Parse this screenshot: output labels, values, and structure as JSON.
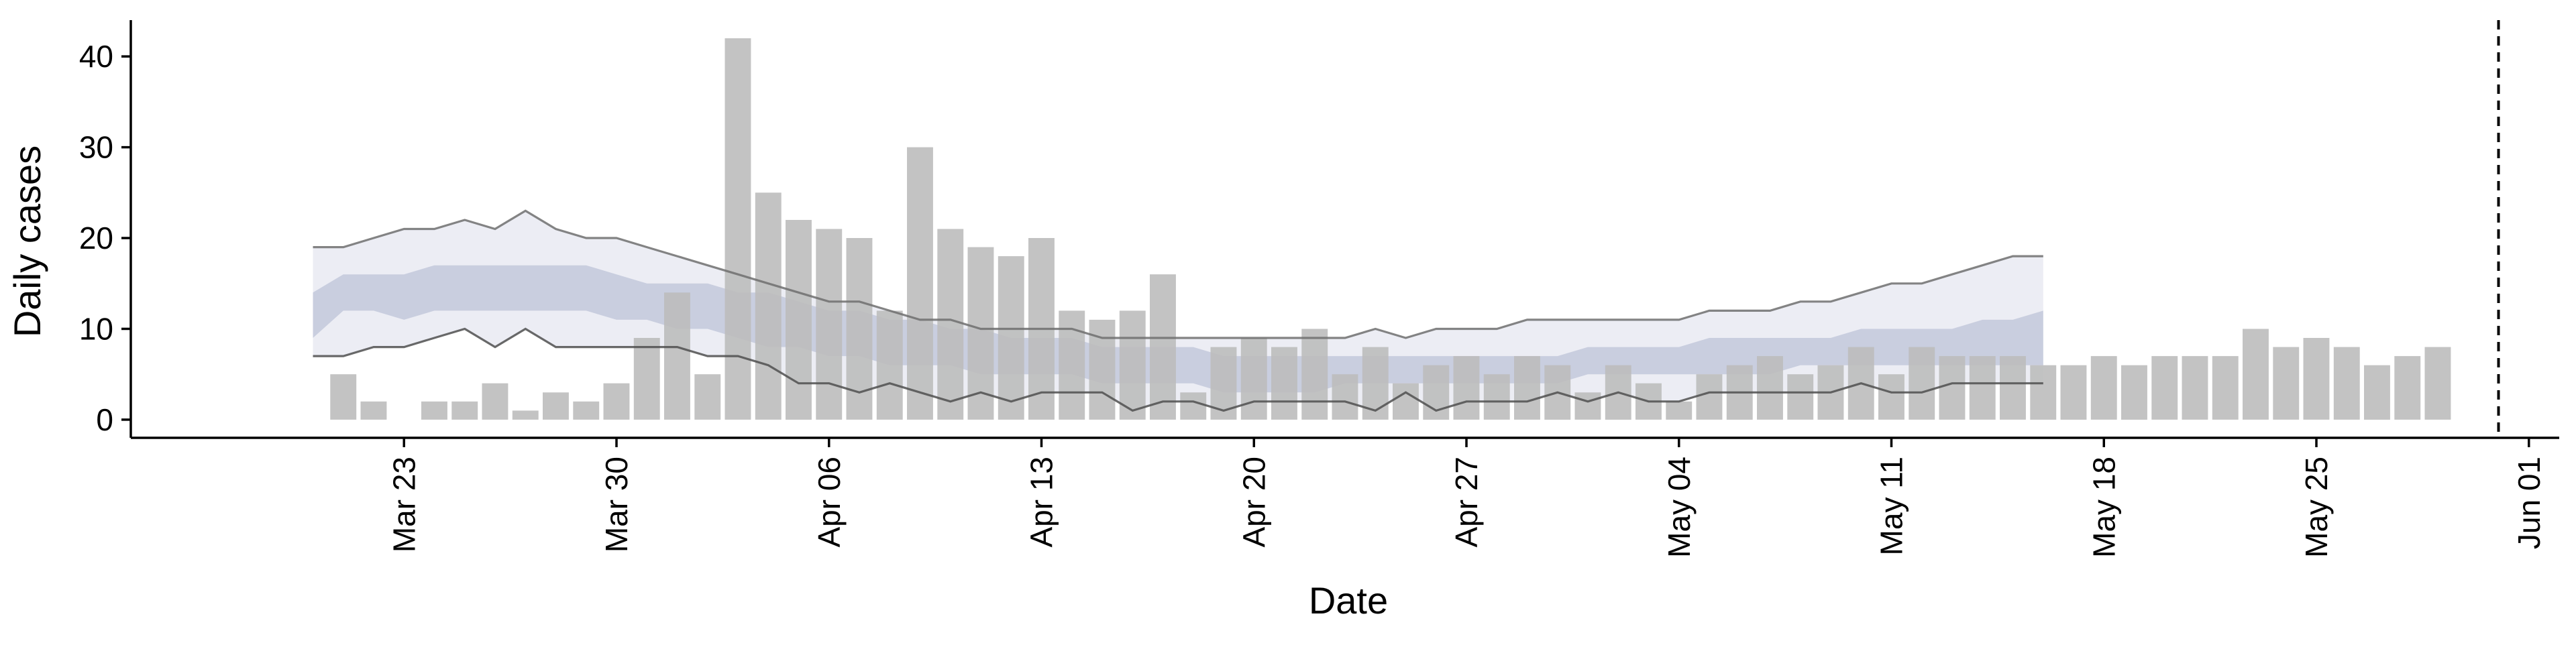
{
  "chart_data": {
    "type": "bar",
    "xlabel": "Date",
    "ylabel": "Daily cases",
    "xlim": [
      "2020-03-14",
      "2020-06-02"
    ],
    "ylim": [
      -2,
      44
    ],
    "y_ticks": [
      0,
      10,
      20,
      30,
      40
    ],
    "x_ticks": [
      {
        "date": "2020-03-23",
        "label": "Mar 23"
      },
      {
        "date": "2020-03-30",
        "label": "Mar 30"
      },
      {
        "date": "2020-04-06",
        "label": "Apr 06"
      },
      {
        "date": "2020-04-13",
        "label": "Apr 13"
      },
      {
        "date": "2020-04-20",
        "label": "Apr 20"
      },
      {
        "date": "2020-04-27",
        "label": "Apr 27"
      },
      {
        "date": "2020-05-04",
        "label": "May 04"
      },
      {
        "date": "2020-05-11",
        "label": "May 11"
      },
      {
        "date": "2020-05-18",
        "label": "May 18"
      },
      {
        "date": "2020-05-25",
        "label": "May 25"
      },
      {
        "date": "2020-06-01",
        "label": "Jun 01"
      }
    ],
    "bars": {
      "start_date": "2020-03-21",
      "values": [
        5,
        2,
        0,
        2,
        2,
        4,
        1,
        3,
        2,
        4,
        9,
        14,
        5,
        42,
        25,
        22,
        21,
        20,
        12,
        30,
        21,
        19,
        18,
        20,
        12,
        11,
        12,
        16,
        3,
        8,
        9,
        8,
        10,
        5,
        8,
        4,
        6,
        7,
        5,
        7,
        6,
        3,
        6,
        4,
        2,
        5,
        6,
        7,
        5,
        6,
        8,
        5,
        8,
        7,
        7,
        7,
        6,
        6,
        7,
        6,
        7,
        7,
        7,
        10,
        8,
        9,
        8,
        6,
        7,
        8
      ],
      "color": "#bdbdbd"
    },
    "dates": [
      "2020-03-20",
      "2020-03-21",
      "2020-03-22",
      "2020-03-23",
      "2020-03-24",
      "2020-03-25",
      "2020-03-26",
      "2020-03-27",
      "2020-03-28",
      "2020-03-29",
      "2020-03-30",
      "2020-03-31",
      "2020-04-01",
      "2020-04-02",
      "2020-04-03",
      "2020-04-04",
      "2020-04-05",
      "2020-04-06",
      "2020-04-07",
      "2020-04-08",
      "2020-04-09",
      "2020-04-10",
      "2020-04-11",
      "2020-04-12",
      "2020-04-13",
      "2020-04-14",
      "2020-04-15",
      "2020-04-16",
      "2020-04-17",
      "2020-04-18",
      "2020-04-19",
      "2020-04-20",
      "2020-04-21",
      "2020-04-22",
      "2020-04-23",
      "2020-04-24",
      "2020-04-25",
      "2020-04-26",
      "2020-04-27",
      "2020-04-28",
      "2020-04-29",
      "2020-04-30",
      "2020-05-01",
      "2020-05-02",
      "2020-05-03",
      "2020-05-04",
      "2020-05-05",
      "2020-05-06",
      "2020-05-07",
      "2020-05-08",
      "2020-05-09",
      "2020-05-10",
      "2020-05-11",
      "2020-05-12",
      "2020-05-13",
      "2020-05-14",
      "2020-05-15",
      "2020-05-16"
    ],
    "outer_band": {
      "color": "#d4d8e6",
      "lower": [
        7,
        7,
        8,
        8,
        9,
        10,
        8,
        10,
        8,
        8,
        8,
        8,
        8,
        7,
        7,
        6,
        4,
        4,
        3,
        4,
        3,
        2,
        3,
        2,
        3,
        3,
        3,
        1,
        2,
        2,
        1,
        2,
        2,
        2,
        2,
        1,
        3,
        1,
        2,
        2,
        2,
        3,
        2,
        3,
        2,
        2,
        3,
        3,
        3,
        3,
        3,
        4,
        3,
        3,
        4,
        4,
        4,
        4
      ],
      "upper": [
        19,
        19,
        20,
        21,
        21,
        22,
        21,
        23,
        21,
        20,
        20,
        19,
        18,
        17,
        16,
        15,
        14,
        13,
        13,
        12,
        11,
        11,
        10,
        10,
        10,
        10,
        9,
        9,
        9,
        9,
        9,
        9,
        9,
        9,
        9,
        10,
        9,
        10,
        10,
        10,
        11,
        11,
        11,
        11,
        11,
        11,
        12,
        12,
        12,
        13,
        13,
        14,
        15,
        15,
        16,
        17,
        18,
        18
      ]
    },
    "inner_band": {
      "color": "#a0a8c6",
      "lower": [
        9,
        12,
        12,
        11,
        12,
        12,
        12,
        12,
        12,
        12,
        11,
        11,
        10,
        10,
        9,
        8,
        8,
        7,
        7,
        6,
        6,
        6,
        5,
        5,
        5,
        5,
        4,
        4,
        4,
        4,
        3,
        3,
        3,
        3,
        4,
        4,
        4,
        4,
        4,
        4,
        4,
        4,
        5,
        5,
        5,
        5,
        5,
        5,
        5,
        6,
        6,
        6,
        6,
        6,
        6,
        6,
        6,
        6
      ],
      "upper": [
        14,
        16,
        16,
        16,
        17,
        17,
        17,
        17,
        17,
        17,
        16,
        15,
        15,
        15,
        14,
        14,
        13,
        12,
        12,
        11,
        11,
        10,
        10,
        9,
        9,
        9,
        8,
        8,
        8,
        8,
        7,
        7,
        7,
        7,
        7,
        7,
        7,
        7,
        7,
        7,
        7,
        7,
        8,
        8,
        8,
        8,
        9,
        9,
        9,
        9,
        9,
        10,
        10,
        10,
        10,
        11,
        11,
        12
      ]
    },
    "vertical_line": {
      "date": "2020-05-31",
      "style": "dashed",
      "color": "#000000"
    }
  }
}
